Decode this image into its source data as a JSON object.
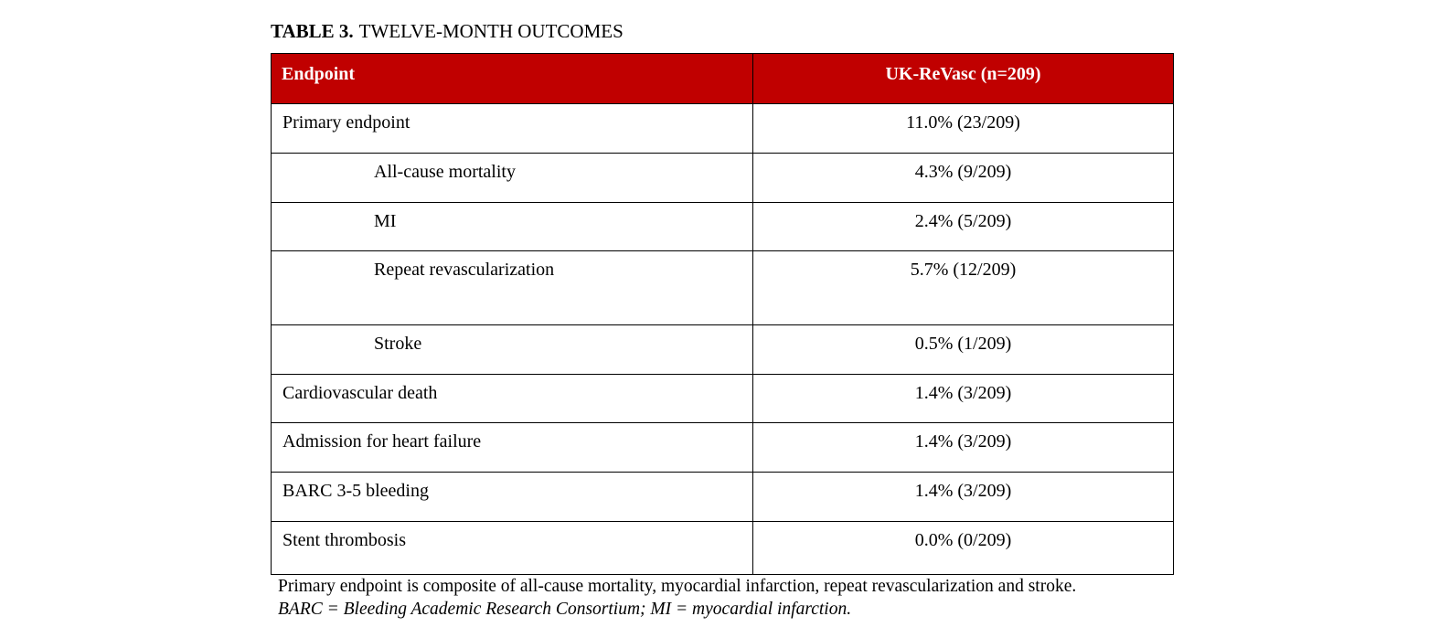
{
  "title": {
    "label": "TABLE 3.",
    "caption": "TWELVE-MONTH OUTCOMES"
  },
  "table": {
    "headers": [
      "Endpoint",
      "UK-ReVasc (n=209)"
    ],
    "rows": [
      {
        "label": "Primary endpoint",
        "value": "11.0% (23/209)",
        "indent": false
      },
      {
        "label": "All-cause mortality",
        "value": "4.3% (9/209)",
        "indent": true
      },
      {
        "label": "MI",
        "value": "2.4% (5/209)",
        "indent": true
      },
      {
        "label": "Repeat revascularization",
        "value": "5.7% (12/209)",
        "indent": true
      },
      {
        "label": "Stroke",
        "value": "0.5% (1/209)",
        "indent": true
      },
      {
        "label": "Cardiovascular death",
        "value": "1.4% (3/209)",
        "indent": false
      },
      {
        "label": "Admission for heart failure",
        "value": "1.4% (3/209)",
        "indent": false
      },
      {
        "label": "BARC 3-5 bleeding",
        "value": "1.4% (3/209)",
        "indent": false
      },
      {
        "label": "Stent thrombosis",
        "value": "0.0% (0/209)",
        "indent": false
      }
    ]
  },
  "footnotes": [
    "Primary endpoint is composite of all-cause mortality, myocardial infarction, repeat revascularization and stroke.",
    "BARC = Bleeding Academic Research Consortium; MI = myocardial infarction."
  ],
  "colors": {
    "header_background": "#c00000",
    "header_text": "#ffffff",
    "border": "#000000",
    "body_text": "#000000",
    "page_background": "#ffffff"
  }
}
